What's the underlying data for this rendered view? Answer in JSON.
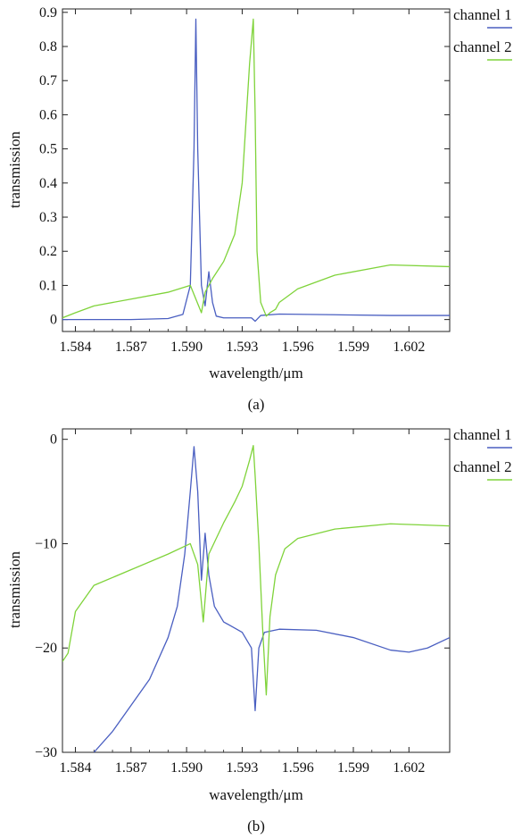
{
  "colors": {
    "channel1": "#4a5fc1",
    "channel2": "#7fd33a",
    "axis": "#222222"
  },
  "chart_data": [
    {
      "type": "line",
      "panel_label": "(a)",
      "xlabel": "wavelength/μm",
      "ylabel": "transmission",
      "xlim": [
        1.5833,
        1.6042
      ],
      "ylim": [
        -0.035,
        0.91
      ],
      "xticks": [
        1.584,
        1.587,
        1.59,
        1.593,
        1.596,
        1.599,
        1.602
      ],
      "xtick_labels": [
        "1.584",
        "1.587",
        "1.590",
        "1.593",
        "1.596",
        "1.599",
        "1.602"
      ],
      "yticks": [
        0,
        0.1,
        0.2,
        0.3,
        0.4,
        0.5,
        0.6,
        0.7,
        0.8,
        0.9
      ],
      "ytick_labels": [
        "0",
        "0.1",
        "0.2",
        "0.3",
        "0.4",
        "0.5",
        "0.6",
        "0.7",
        "0.8",
        "0.9"
      ],
      "legend_position": "right",
      "series": [
        {
          "name": "channel 1",
          "x": [
            1.5833,
            1.585,
            1.587,
            1.589,
            1.5898,
            1.5902,
            1.5904,
            1.5905,
            1.5906,
            1.5908,
            1.591,
            1.5912,
            1.5914,
            1.5916,
            1.592,
            1.593,
            1.5935,
            1.5937,
            1.594,
            1.595,
            1.598,
            1.601,
            1.6042
          ],
          "y": [
            0,
            0,
            0,
            0.003,
            0.015,
            0.1,
            0.5,
            0.88,
            0.5,
            0.1,
            0.04,
            0.14,
            0.05,
            0.01,
            0.005,
            0.005,
            0.005,
            -0.005,
            0.012,
            0.016,
            0.014,
            0.012,
            0.012
          ]
        },
        {
          "name": "channel 2",
          "x": [
            1.5833,
            1.584,
            1.585,
            1.587,
            1.589,
            1.5902,
            1.5908,
            1.591,
            1.5914,
            1.592,
            1.5926,
            1.593,
            1.5934,
            1.5936,
            1.5937,
            1.5938,
            1.594,
            1.5943,
            1.5945,
            1.5948,
            1.595,
            1.596,
            1.598,
            1.601,
            1.6042
          ],
          "y": [
            0.005,
            0.02,
            0.04,
            0.06,
            0.08,
            0.1,
            0.02,
            0.08,
            0.12,
            0.17,
            0.25,
            0.4,
            0.75,
            0.88,
            0.6,
            0.2,
            0.05,
            0.01,
            0.02,
            0.03,
            0.05,
            0.09,
            0.13,
            0.16,
            0.155
          ]
        }
      ]
    },
    {
      "type": "line",
      "panel_label": "(b)",
      "xlabel": "wavelength/μm",
      "ylabel": "transmission",
      "xlim": [
        1.5833,
        1.6042
      ],
      "ylim": [
        -30,
        1
      ],
      "xticks": [
        1.584,
        1.587,
        1.59,
        1.593,
        1.596,
        1.599,
        1.602
      ],
      "xtick_labels": [
        "1.584",
        "1.587",
        "1.590",
        "1.593",
        "1.596",
        "1.599",
        "1.602"
      ],
      "yticks": [
        0,
        -10,
        -20,
        -30
      ],
      "ytick_labels": [
        "0",
        "−10",
        "−20",
        "−30"
      ],
      "legend_position": "right",
      "series": [
        {
          "name": "channel 1",
          "x": [
            1.585,
            1.586,
            1.587,
            1.588,
            1.589,
            1.5895,
            1.5899,
            1.5902,
            1.5904,
            1.5906,
            1.5908,
            1.591,
            1.5912,
            1.5915,
            1.592,
            1.5925,
            1.593,
            1.5935,
            1.5937,
            1.5939,
            1.5942,
            1.595,
            1.597,
            1.599,
            1.601,
            1.602,
            1.603,
            1.6042
          ],
          "y": [
            -30,
            -28,
            -25.5,
            -23,
            -19,
            -16,
            -11,
            -5,
            -0.7,
            -5,
            -13.5,
            -9,
            -13,
            -16,
            -17.5,
            -18,
            -18.5,
            -20,
            -26,
            -20,
            -18.5,
            -18.2,
            -18.3,
            -19,
            -20.2,
            -20.4,
            -20,
            -19
          ]
        },
        {
          "name": "channel 2",
          "x": [
            1.5833,
            1.5836,
            1.584,
            1.585,
            1.587,
            1.589,
            1.5902,
            1.5906,
            1.5909,
            1.5912,
            1.5916,
            1.592,
            1.5926,
            1.593,
            1.5934,
            1.5936,
            1.5937,
            1.5939,
            1.5941,
            1.5943,
            1.5945,
            1.5948,
            1.5953,
            1.596,
            1.598,
            1.601,
            1.6042
          ],
          "y": [
            -21.3,
            -20.5,
            -16.5,
            -14,
            -12.5,
            -11,
            -10,
            -12,
            -17.5,
            -11,
            -9.5,
            -8,
            -6,
            -4.5,
            -2,
            -0.6,
            -3.5,
            -10,
            -18,
            -24.5,
            -17,
            -13,
            -10.5,
            -9.5,
            -8.6,
            -8.1,
            -8.3
          ]
        }
      ]
    }
  ]
}
